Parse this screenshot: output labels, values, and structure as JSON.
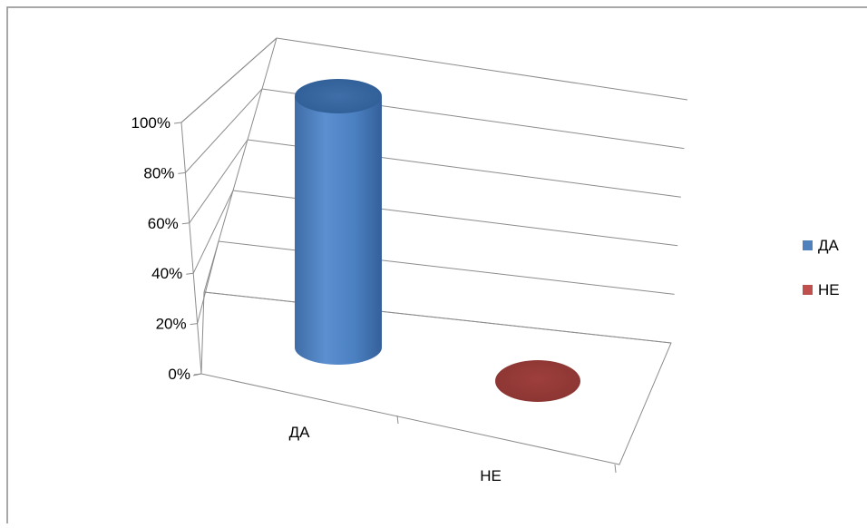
{
  "chart_data": {
    "type": "bar",
    "style": "3d-cylinder",
    "categories": [
      "ДА",
      "НЕ"
    ],
    "series": [
      {
        "name": "ДА",
        "values": [
          100,
          0
        ],
        "color": "#4f81bd"
      },
      {
        "name": "НЕ",
        "values": [
          0,
          0
        ],
        "color": "#c0504d"
      }
    ],
    "ylim": [
      0,
      100
    ],
    "yticks": [
      "0%",
      "20%",
      "40%",
      "60%",
      "80%",
      "100%"
    ],
    "grid": true,
    "legend": "right"
  }
}
